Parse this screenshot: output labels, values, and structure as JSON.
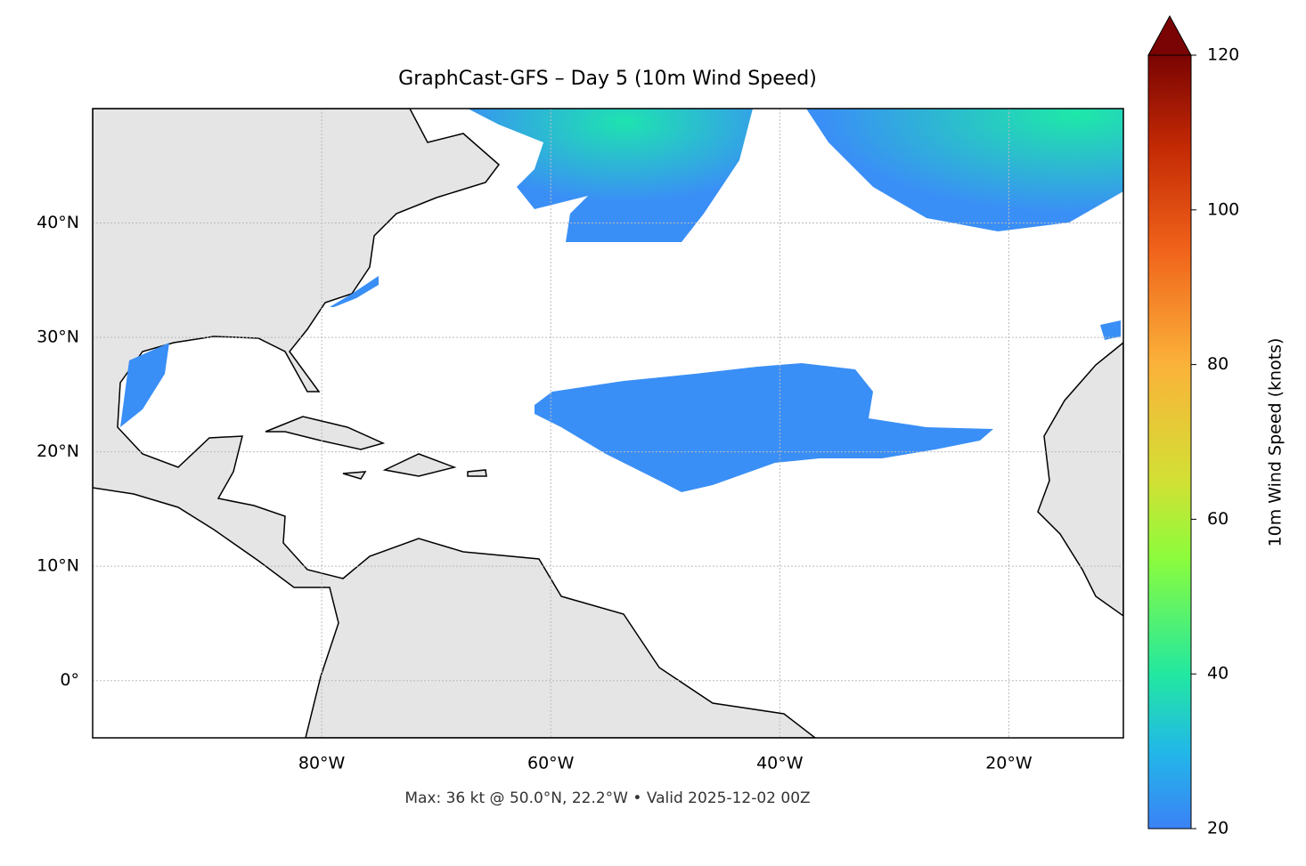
{
  "map": {
    "title": "GraphCast-GFS – Day 5 (10m Wind Speed)",
    "footer": "Max: 36 kt @ 50.0°N, 22.2°W • Valid 2025-12-02 00Z",
    "lonlim": [
      -100,
      -10
    ],
    "latlim": [
      -5,
      50
    ],
    "lon_ticks": [
      {
        "value": -80,
        "label": "80°W"
      },
      {
        "value": -60,
        "label": "60°W"
      },
      {
        "value": -40,
        "label": "40°W"
      },
      {
        "value": -20,
        "label": "20°W"
      }
    ],
    "lat_ticks": [
      {
        "value": 40,
        "label": "40°N"
      },
      {
        "value": 30,
        "label": "30°N"
      },
      {
        "value": 20,
        "label": "20°N"
      },
      {
        "value": 10,
        "label": "10°N"
      },
      {
        "value": 0,
        "label": "0°"
      }
    ],
    "grid": true,
    "colorbar": {
      "label": "10m Wind Speed (knots)",
      "lim": [
        20,
        120
      ],
      "ticks": [
        20,
        40,
        60,
        80,
        100,
        120
      ],
      "extend": "max"
    }
  }
}
